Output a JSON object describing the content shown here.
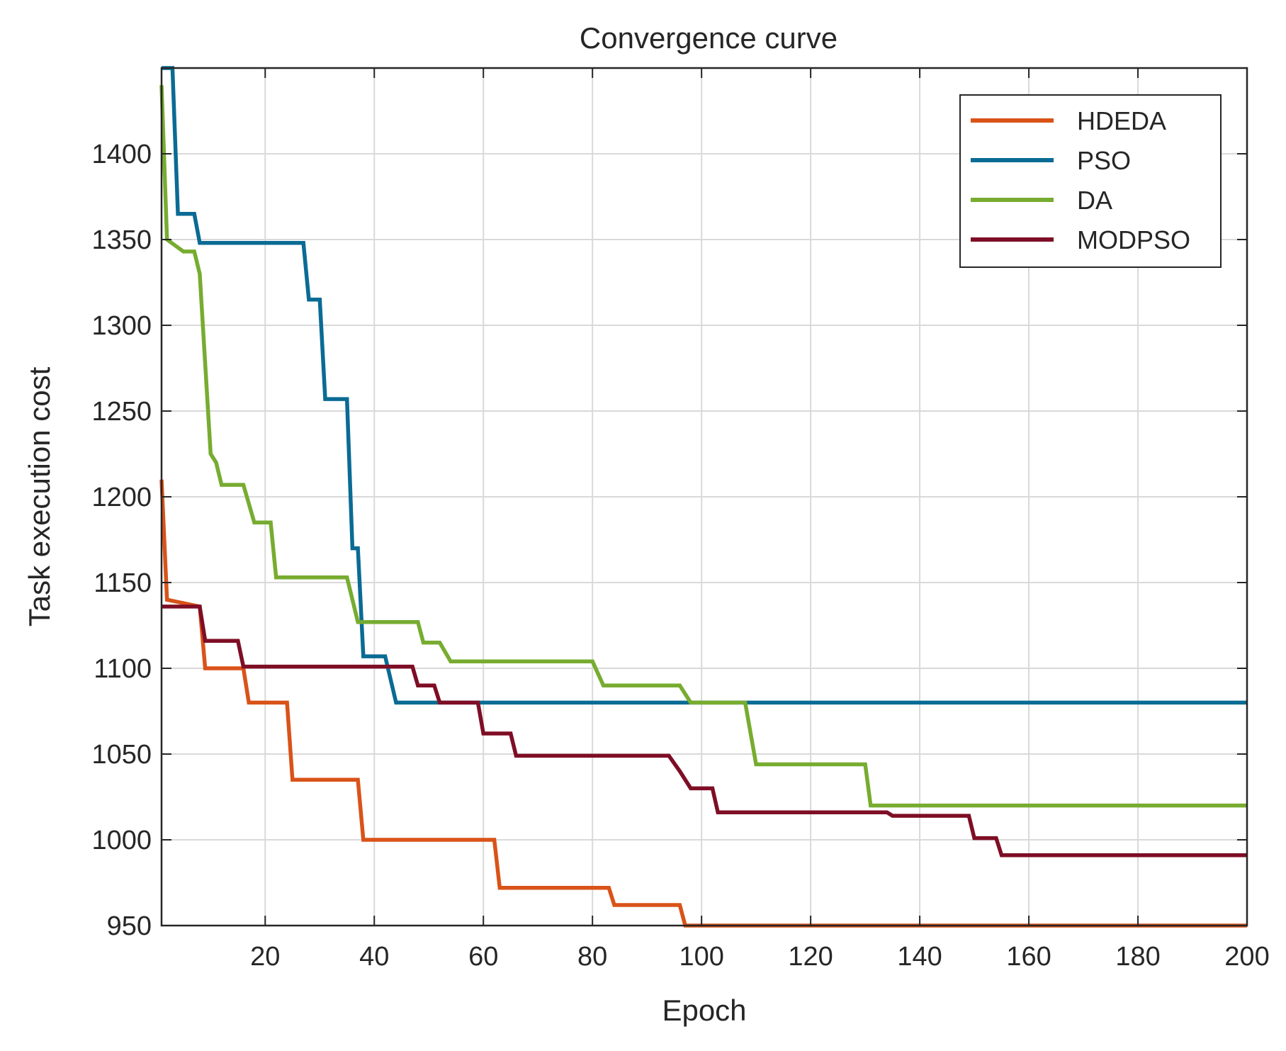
{
  "chart_data": {
    "type": "line",
    "title": "Convergence curve",
    "xlabel": "Epoch",
    "ylabel": "Task execution cost",
    "xlim": [
      1,
      200
    ],
    "ylim": [
      950,
      1450
    ],
    "xticks": [
      20,
      40,
      60,
      80,
      100,
      120,
      140,
      160,
      180,
      200
    ],
    "yticks": [
      950,
      1000,
      1050,
      1100,
      1150,
      1200,
      1250,
      1300,
      1350,
      1400
    ],
    "grid": true,
    "legend_position": "top-right",
    "series": [
      {
        "name": "HDEDA",
        "color": "#d95319",
        "points": [
          [
            1,
            1210
          ],
          [
            2,
            1140
          ],
          [
            8,
            1136
          ],
          [
            9,
            1100
          ],
          [
            16,
            1100
          ],
          [
            17,
            1080
          ],
          [
            24,
            1080
          ],
          [
            25,
            1035
          ],
          [
            37,
            1035
          ],
          [
            38,
            1000
          ],
          [
            62,
            1000
          ],
          [
            63,
            972
          ],
          [
            83,
            972
          ],
          [
            84,
            962
          ],
          [
            96,
            962
          ],
          [
            97,
            950
          ],
          [
            200,
            950
          ]
        ]
      },
      {
        "name": "PSO",
        "color": "#0a6b94",
        "points": [
          [
            1,
            1450
          ],
          [
            3,
            1450
          ],
          [
            4,
            1365
          ],
          [
            7,
            1365
          ],
          [
            8,
            1348
          ],
          [
            27,
            1348
          ],
          [
            28,
            1315
          ],
          [
            30,
            1315
          ],
          [
            31,
            1257
          ],
          [
            35,
            1257
          ],
          [
            36,
            1170
          ],
          [
            37,
            1170
          ],
          [
            38,
            1107
          ],
          [
            42,
            1107
          ],
          [
            44,
            1080
          ],
          [
            200,
            1080
          ]
        ]
      },
      {
        "name": "DA",
        "color": "#77ac30",
        "points": [
          [
            1,
            1440
          ],
          [
            2,
            1350
          ],
          [
            5,
            1343
          ],
          [
            7,
            1343
          ],
          [
            8,
            1330
          ],
          [
            10,
            1225
          ],
          [
            11,
            1220
          ],
          [
            12,
            1207
          ],
          [
            16,
            1207
          ],
          [
            18,
            1185
          ],
          [
            21,
            1185
          ],
          [
            22,
            1153
          ],
          [
            35,
            1153
          ],
          [
            37,
            1127
          ],
          [
            48,
            1127
          ],
          [
            49,
            1115
          ],
          [
            52,
            1115
          ],
          [
            54,
            1104
          ],
          [
            80,
            1104
          ],
          [
            82,
            1090
          ],
          [
            96,
            1090
          ],
          [
            98,
            1080
          ],
          [
            108,
            1080
          ],
          [
            110,
            1044
          ],
          [
            130,
            1044
          ],
          [
            131,
            1020
          ],
          [
            200,
            1020
          ]
        ]
      },
      {
        "name": "MODPSO",
        "color": "#7e0e25",
        "points": [
          [
            1,
            1136
          ],
          [
            8,
            1136
          ],
          [
            9,
            1116
          ],
          [
            15,
            1116
          ],
          [
            16,
            1101
          ],
          [
            47,
            1101
          ],
          [
            48,
            1090
          ],
          [
            51,
            1090
          ],
          [
            52,
            1080
          ],
          [
            59,
            1080
          ],
          [
            60,
            1062
          ],
          [
            65,
            1062
          ],
          [
            66,
            1049
          ],
          [
            94,
            1049
          ],
          [
            96,
            1040
          ],
          [
            98,
            1030
          ],
          [
            102,
            1030
          ],
          [
            103,
            1016
          ],
          [
            134,
            1016
          ],
          [
            135,
            1014
          ],
          [
            149,
            1014
          ],
          [
            150,
            1001
          ],
          [
            154,
            1001
          ],
          [
            155,
            991
          ],
          [
            200,
            991
          ]
        ]
      }
    ]
  }
}
